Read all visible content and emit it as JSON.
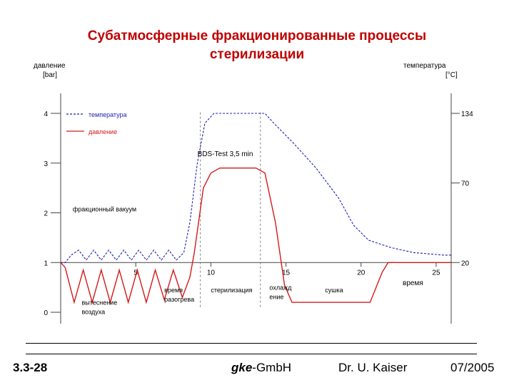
{
  "header": {
    "title_line1": "Субатмосферные фракционированные процессы",
    "title_line2": "стерилизации"
  },
  "footer": {
    "slide_no": "3.3-28",
    "company_italic": "gke",
    "company_rest": "-GmbH",
    "author": "Dr. U. Kaiser",
    "date": "07/2005"
  },
  "colors": {
    "temperature": "#1f1fb0",
    "pressure": "#d41a1a",
    "axis": "#444444"
  },
  "chart_data": {
    "type": "line",
    "left_axis": {
      "label_line1": "давление",
      "label_line2": "[bar]",
      "ticks": [
        0,
        1,
        2,
        3,
        4
      ],
      "range": [
        0,
        4.4
      ]
    },
    "right_axis": {
      "label_line1": "температура",
      "label_line2": "[°C]",
      "ticks": [
        {
          "label": "20",
          "pressure_equiv": 1.0
        },
        {
          "label": "70",
          "pressure_equiv": 2.6
        },
        {
          "label": "134",
          "pressure_equiv": 4.0
        }
      ]
    },
    "x_axis": {
      "label": "время",
      "ticks": [
        5,
        10,
        15,
        20,
        25
      ],
      "range": [
        0,
        26
      ],
      "crosses_at_pressure": 1.0
    },
    "legend": {
      "placement": "top-left",
      "items": [
        {
          "key": "temperature",
          "label": "температура",
          "style": "dashed"
        },
        {
          "key": "pressure",
          "label": "давление",
          "style": "solid"
        }
      ]
    },
    "series": [
      {
        "key": "pressure",
        "points": [
          [
            0.0,
            1.0
          ],
          [
            0.3,
            0.9
          ],
          [
            0.9,
            0.2
          ],
          [
            1.5,
            0.85
          ],
          [
            2.1,
            0.2
          ],
          [
            2.7,
            0.85
          ],
          [
            3.3,
            0.2
          ],
          [
            3.9,
            0.85
          ],
          [
            4.5,
            0.2
          ],
          [
            5.1,
            0.85
          ],
          [
            5.7,
            0.2
          ],
          [
            6.3,
            0.85
          ],
          [
            6.9,
            0.25
          ],
          [
            7.5,
            0.85
          ],
          [
            8.1,
            0.3
          ],
          [
            8.6,
            0.7
          ],
          [
            8.9,
            1.2
          ],
          [
            9.5,
            2.5
          ],
          [
            10.0,
            2.8
          ],
          [
            10.6,
            2.9
          ],
          [
            13.0,
            2.9
          ],
          [
            13.6,
            2.8
          ],
          [
            14.3,
            1.8
          ],
          [
            14.9,
            0.55
          ],
          [
            15.4,
            0.2
          ],
          [
            20.6,
            0.2
          ],
          [
            21.4,
            0.8
          ],
          [
            21.8,
            1.0
          ],
          [
            23.0,
            1.0
          ],
          [
            26.0,
            1.0
          ]
        ]
      },
      {
        "key": "temperature",
        "points": [
          [
            0.0,
            1.0
          ],
          [
            0.3,
            1.0
          ],
          [
            0.7,
            1.15
          ],
          [
            1.2,
            1.25
          ],
          [
            1.7,
            1.05
          ],
          [
            2.2,
            1.25
          ],
          [
            2.7,
            1.05
          ],
          [
            3.2,
            1.25
          ],
          [
            3.7,
            1.05
          ],
          [
            4.2,
            1.25
          ],
          [
            4.7,
            1.05
          ],
          [
            5.2,
            1.25
          ],
          [
            5.7,
            1.05
          ],
          [
            6.2,
            1.25
          ],
          [
            6.7,
            1.05
          ],
          [
            7.2,
            1.25
          ],
          [
            7.7,
            1.05
          ],
          [
            8.2,
            1.2
          ],
          [
            8.6,
            1.8
          ],
          [
            9.1,
            3.0
          ],
          [
            9.6,
            3.8
          ],
          [
            10.2,
            4.0
          ],
          [
            13.6,
            4.0
          ],
          [
            14.2,
            3.8
          ],
          [
            15.5,
            3.4
          ],
          [
            17.0,
            2.9
          ],
          [
            18.5,
            2.3
          ],
          [
            19.5,
            1.75
          ],
          [
            20.5,
            1.45
          ],
          [
            22.0,
            1.3
          ],
          [
            23.5,
            1.2
          ],
          [
            25.5,
            1.15
          ],
          [
            26.0,
            1.15
          ]
        ]
      }
    ],
    "markers": [
      {
        "x": 9.3,
        "label": "BDS-Test 3,5 min",
        "pressure": 3.0,
        "dashed_line": true
      },
      {
        "x": 13.3,
        "label": "",
        "dashed_line": true
      }
    ],
    "annotations": [
      {
        "label_line1": "фракционный вакуум",
        "label_line2": "",
        "x": 0.8,
        "p": 2.03
      },
      {
        "label_line1": "вытеснение",
        "label_line2": "воздуха",
        "x": 1.4,
        "p": 0.15
      },
      {
        "label_line1": "время",
        "label_line2": "разогрева",
        "x": 6.9,
        "p": 0.4
      },
      {
        "label_line1": "стерилизация",
        "label_line2": "",
        "x": 10.0,
        "p": 0.4
      },
      {
        "label_line1": "охлажд",
        "label_line2": "ение",
        "x": 13.9,
        "p": 0.45
      },
      {
        "label_line1": "сушка",
        "label_line2": "",
        "x": 17.6,
        "p": 0.4
      }
    ]
  }
}
